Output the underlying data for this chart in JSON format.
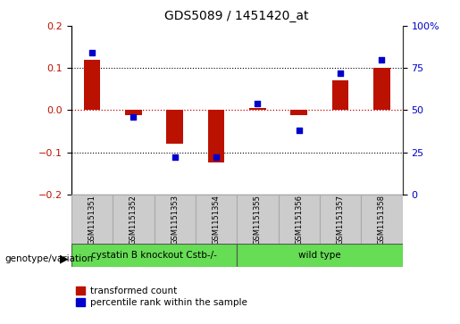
{
  "title": "GDS5089 / 1451420_at",
  "samples": [
    "GSM1151351",
    "GSM1151352",
    "GSM1151353",
    "GSM1151354",
    "GSM1151355",
    "GSM1151356",
    "GSM1151357",
    "GSM1151358"
  ],
  "red_values": [
    0.12,
    -0.012,
    -0.08,
    -0.125,
    0.005,
    -0.012,
    0.07,
    0.1
  ],
  "blue_values": [
    84,
    46,
    22,
    22,
    54,
    38,
    72,
    80
  ],
  "groups": [
    {
      "label": "cystatin B knockout Cstb-/-",
      "start": 0,
      "end": 4,
      "color": "#66dd55"
    },
    {
      "label": "wild type",
      "start": 4,
      "end": 8,
      "color": "#66dd55"
    }
  ],
  "left_ylim": [
    -0.2,
    0.2
  ],
  "right_ylim": [
    0,
    100
  ],
  "left_yticks": [
    -0.2,
    -0.1,
    0.0,
    0.1,
    0.2
  ],
  "right_yticks": [
    0,
    25,
    50,
    75,
    100
  ],
  "right_yticklabels": [
    "0",
    "25",
    "50",
    "75",
    "100%"
  ],
  "bar_color": "#bb1100",
  "dot_color": "#0000cc",
  "hline_red_color": "#cc0000",
  "dotted_color": "#000000",
  "legend_label_red": "transformed count",
  "legend_label_blue": "percentile rank within the sample",
  "genotype_label": "genotype/variation",
  "background_color": "#ffffff",
  "plot_bg_color": "#ffffff",
  "label_box_color": "#cccccc",
  "bar_width": 0.4
}
